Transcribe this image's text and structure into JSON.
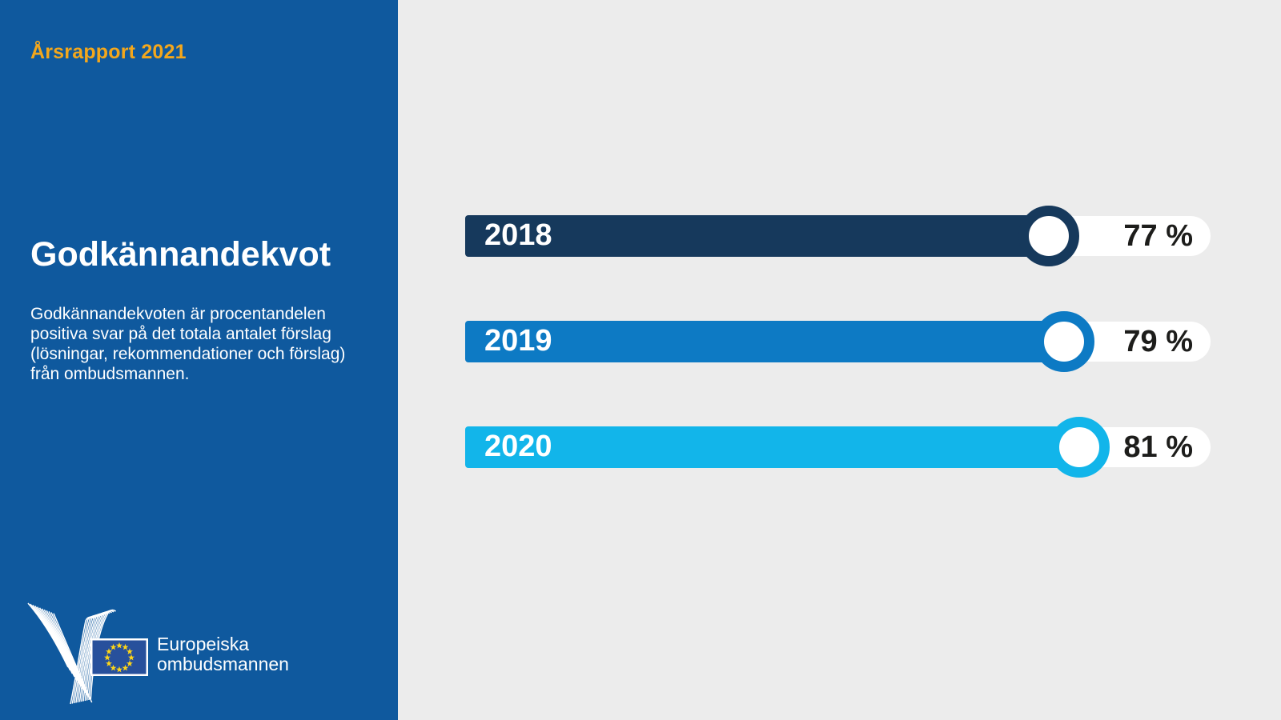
{
  "page": {
    "background_color": "#ececec"
  },
  "sidebar": {
    "background_color": "#0f599e",
    "accent_color": "#f3a71c",
    "report_label": "Årsrapport 2021",
    "title": "Godkännandekvot",
    "description": "Godkännandekvoten är procentandelen\npositiva svar på det totala antalet förslag\n(lösningar, rekommendationer och förslag)\nfrån ombudsmannen.",
    "logo": {
      "org_name_line1": "Europeiska",
      "org_name_line2": "ombudsmannen",
      "flag_color": "#27509c",
      "star_color": "#ffd617",
      "bird_color": "#ffffff"
    }
  },
  "chart_data": {
    "type": "bar",
    "orientation": "horizontal",
    "title": "Godkännandekvot",
    "categories": [
      "2018",
      "2019",
      "2020"
    ],
    "values": [
      77,
      79,
      81
    ],
    "value_labels": [
      "77 %",
      "79 %",
      "81 %"
    ],
    "colors": [
      "#16395c",
      "#0d7ac4",
      "#12b5ea"
    ],
    "unit": "%",
    "xlim": [
      0,
      100
    ],
    "grid": false,
    "legend": false,
    "value_text_color": "#1d1d1b",
    "track_color": "#ffffff"
  }
}
